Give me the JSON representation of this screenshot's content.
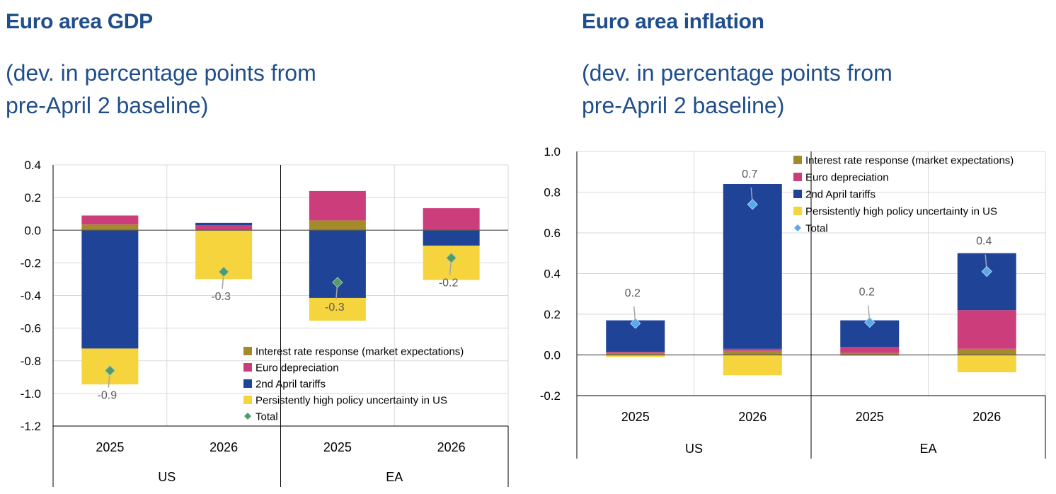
{
  "colors": {
    "interest": "#a38b2b",
    "euro": "#cc3d7c",
    "tariffs": "#1f4397",
    "uncertainty": "#f6d43e",
    "total_gdp": "#4f9b6c",
    "total_inf": "#5ba9ea",
    "title": "#1f4e8c",
    "axis": "#000000",
    "grid": "#d9d9d9",
    "zero": "#595959",
    "label": "#595959",
    "leader": "#a6a6a6"
  },
  "chart_data": [
    {
      "id": "gdp",
      "type": "bar",
      "stacked": true,
      "title": "Euro area GDP",
      "subtitle_lines": [
        "(dev. in percentage points from",
        "pre-April 2 baseline)"
      ],
      "groups": [
        {
          "label": "US",
          "categories": [
            "2025",
            "2026"
          ]
        },
        {
          "label": "EA",
          "categories": [
            "2025",
            "2026"
          ]
        }
      ],
      "categories": [
        "2025",
        "2026",
        "2025",
        "2026"
      ],
      "ylim": [
        -1.2,
        0.4
      ],
      "yticks": [
        0.4,
        0.2,
        0.0,
        -0.2,
        -0.4,
        -0.6,
        -0.8,
        -1.0,
        -1.2
      ],
      "ytick_labels": [
        "0.4",
        "0.2",
        "0.0",
        "-0.2",
        "-0.4",
        "-0.6",
        "-0.8",
        "-1.0",
        "-1.2"
      ],
      "grid": true,
      "legend_position": "bottom-right",
      "series": [
        {
          "key": "interest",
          "name": "Interest rate response (market expectations)",
          "values": [
            0.035,
            0.0,
            0.06,
            0.0
          ]
        },
        {
          "key": "euro",
          "name": "Euro depreciation",
          "values": [
            0.055,
            0.03,
            0.18,
            0.135
          ]
        },
        {
          "key": "tariffs",
          "name": "2nd April tariffs",
          "values": [
            -0.725,
            0.015,
            -0.415,
            -0.095
          ]
        },
        {
          "key": "uncertainty",
          "name": "Persistently high policy uncertainty in US",
          "values": [
            -0.22,
            -0.3,
            -0.14,
            -0.21
          ]
        }
      ],
      "total": {
        "name": "Total",
        "values": [
          -0.86,
          -0.255,
          -0.32,
          -0.17
        ]
      },
      "total_labels": [
        "-0.9",
        "-0.3",
        "-0.3",
        "-0.2"
      ],
      "total_label_positions": [
        "below",
        "below",
        "below",
        "below"
      ]
    },
    {
      "id": "inf",
      "type": "bar",
      "stacked": true,
      "title": "Euro area inflation",
      "subtitle_lines": [
        "(dev. in percentage points from",
        "pre-April 2 baseline)"
      ],
      "groups": [
        {
          "label": "US",
          "categories": [
            "2025",
            "2026"
          ]
        },
        {
          "label": "EA",
          "categories": [
            "2025",
            "2026"
          ]
        }
      ],
      "categories": [
        "2025",
        "2026",
        "2025",
        "2026"
      ],
      "ylim": [
        -0.2,
        1.0
      ],
      "yticks": [
        1.0,
        0.8,
        0.6,
        0.4,
        0.2,
        0.0,
        -0.2
      ],
      "ytick_labels": [
        "1.0",
        "0.8",
        "0.6",
        "0.4",
        "0.2",
        "0.0",
        "-0.2"
      ],
      "grid": true,
      "legend_position": "top-right",
      "series": [
        {
          "key": "interest",
          "name": "Interest rate response (market expectations)",
          "values": [
            0.01,
            0.02,
            0.01,
            0.03
          ]
        },
        {
          "key": "euro",
          "name": "Euro depreciation",
          "values": [
            0.005,
            0.01,
            0.03,
            0.19
          ]
        },
        {
          "key": "tariffs",
          "name": "2nd April tariffs",
          "values": [
            0.155,
            0.81,
            0.13,
            0.28
          ]
        },
        {
          "key": "uncertainty",
          "name": "Persistently high policy uncertainty in US",
          "values": [
            -0.01,
            -0.1,
            -0.005,
            -0.085
          ]
        }
      ],
      "total": {
        "name": "Total",
        "values": [
          0.155,
          0.74,
          0.16,
          0.41
        ]
      },
      "total_labels": [
        "0.2",
        "0.7",
        "0.2",
        "0.4"
      ],
      "total_label_positions": [
        "above",
        "above",
        "above",
        "above"
      ]
    }
  ]
}
